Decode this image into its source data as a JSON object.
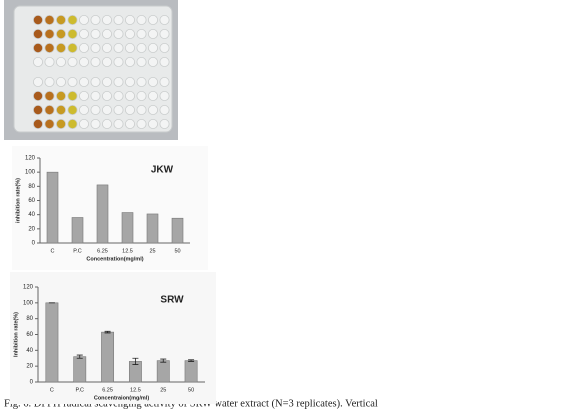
{
  "chart_data": [
    {
      "type": "bar",
      "title": "JKW",
      "y_label": "inhibition rate(%)",
      "x_label": "Concentration(mg/ml)",
      "categories": [
        "C",
        "P.C",
        "6.25",
        "12.5",
        "25",
        "50"
      ],
      "values": [
        100,
        36,
        82,
        43,
        41,
        35
      ],
      "color": "#a6a6a6",
      "ylim": [
        0,
        120
      ],
      "yticks": [
        0,
        20,
        40,
        60,
        80,
        100,
        120
      ]
    },
    {
      "type": "bar",
      "title": "SRW",
      "y_label": "Inhibition rate(%)",
      "x_label": "Concentraion(mg/ml)",
      "categories": [
        "C",
        "P.C",
        "6.25",
        "12.5",
        "25",
        "50"
      ],
      "values": [
        100,
        32,
        63,
        26,
        27,
        27
      ],
      "errors": [
        0,
        2,
        1,
        4,
        2,
        1
      ],
      "color": "#a6a6a6",
      "ylim": [
        0,
        120
      ],
      "yticks": [
        0,
        20,
        40,
        60,
        80,
        100,
        120
      ]
    }
  ],
  "caption": "Fig. 6. DPPH radical scavenging activity of SRW water extract (N=3 replicates). Vertical"
}
